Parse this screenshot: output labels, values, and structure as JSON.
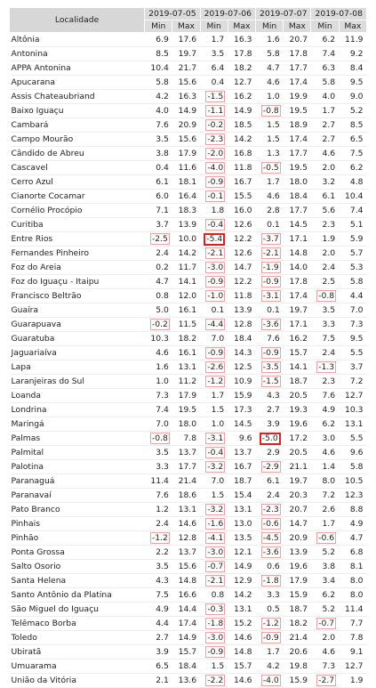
{
  "table": {
    "locality_header": "Localidade",
    "dates": [
      "2019-07-05",
      "2019-07-06",
      "2019-07-07",
      "2019-07-08"
    ],
    "sub_headers": [
      "Min",
      "Max"
    ],
    "rows": [
      {
        "name": "Altônia",
        "values": [
          "6.9",
          "17.6",
          "1.7",
          "16.3",
          "1.6",
          "20.7",
          "6.2",
          "11.9"
        ]
      },
      {
        "name": "Antonina",
        "values": [
          "8.5",
          "19.7",
          "3.5",
          "17.8",
          "5.8",
          "17.8",
          "7.4",
          "9.2"
        ]
      },
      {
        "name": "APPA Antonina",
        "values": [
          "10.4",
          "21.7",
          "6.4",
          "18.2",
          "4.7",
          "17.7",
          "6.3",
          "8.4"
        ]
      },
      {
        "name": "Apucarana",
        "values": [
          "5.8",
          "15.6",
          "0.4",
          "12.7",
          "4.6",
          "17.4",
          "5.8",
          "9.5"
        ]
      },
      {
        "name": "Assis Chateaubriand",
        "values": [
          "4.2",
          "16.3",
          "-1.5",
          "16.2",
          "1.0",
          "19.9",
          "4.0",
          "9.0"
        ]
      },
      {
        "name": "Baixo Iguaçu",
        "values": [
          "4.0",
          "14.9",
          "-1.1",
          "14.9",
          "-0.8",
          "19.5",
          "1.7",
          "5.2"
        ]
      },
      {
        "name": "Cambará",
        "values": [
          "7.6",
          "20.9",
          "-0.2",
          "18.5",
          "1.5",
          "18.9",
          "2.7",
          "8.5"
        ]
      },
      {
        "name": "Campo Mourão",
        "values": [
          "3.5",
          "15.6",
          "-2.3",
          "14.2",
          "1.5",
          "17.4",
          "2.7",
          "6.5"
        ]
      },
      {
        "name": "Cândido de Abreu",
        "values": [
          "3.8",
          "17.9",
          "-2.0",
          "16.8",
          "1.3",
          "17.7",
          "4.6",
          "7.5"
        ]
      },
      {
        "name": "Cascavel",
        "values": [
          "0.4",
          "11.6",
          "-4.0",
          "11.8",
          "-0.5",
          "19.5",
          "2.0",
          "6.2"
        ]
      },
      {
        "name": "Cerro Azul",
        "values": [
          "6.1",
          "18.1",
          "-0.9",
          "16.7",
          "1.7",
          "18.0",
          "3.2",
          "4.8"
        ]
      },
      {
        "name": "Cianorte Cocamar",
        "values": [
          "6.0",
          "16.4",
          "-0.1",
          "15.5",
          "4.6",
          "18.4",
          "6.1",
          "10.4"
        ]
      },
      {
        "name": "Cornélio Procópio",
        "values": [
          "7.1",
          "18.3",
          "1.8",
          "16.0",
          "2.8",
          "17.7",
          "5.6",
          "7.4"
        ]
      },
      {
        "name": "Curitiba",
        "values": [
          "3.7",
          "13.9",
          "-0.4",
          "12.6",
          "0.1",
          "14.5",
          "2.3",
          "5.1"
        ]
      },
      {
        "name": "Entre Rios",
        "values": [
          "-2.5",
          "10.0",
          "-5.4",
          "12.2",
          "-3.7",
          "17.1",
          "1.9",
          "5.9"
        ]
      },
      {
        "name": "Fernandes Pinheiro",
        "values": [
          "2.4",
          "14.2",
          "-2.1",
          "12.6",
          "-2.1",
          "14.8",
          "2.0",
          "5.7"
        ]
      },
      {
        "name": "Foz do Areia",
        "values": [
          "0.2",
          "11.7",
          "-3.0",
          "14.7",
          "-1.9",
          "14.0",
          "2.4",
          "5.3"
        ]
      },
      {
        "name": "Foz do Iguaçu - Itaipu",
        "values": [
          "4.7",
          "14.1",
          "-0.9",
          "12.2",
          "-0.9",
          "17.8",
          "2.5",
          "5.8"
        ]
      },
      {
        "name": "Francisco Beltrão",
        "values": [
          "0.8",
          "12.0",
          "-1.0",
          "11.8",
          "-3.1",
          "17.4",
          "-0.8",
          "4.4"
        ]
      },
      {
        "name": "Guaíra",
        "values": [
          "5.0",
          "16.1",
          "0.1",
          "13.9",
          "0.1",
          "19.7",
          "3.5",
          "7.0"
        ]
      },
      {
        "name": "Guarapuava",
        "values": [
          "-0.2",
          "11.5",
          "-4.4",
          "12.8",
          "-3.6",
          "17.1",
          "3.3",
          "7.3"
        ]
      },
      {
        "name": "Guaratuba",
        "values": [
          "10.3",
          "18.2",
          "7.0",
          "18.4",
          "7.6",
          "16.2",
          "7.5",
          "9.5"
        ]
      },
      {
        "name": "Jaguariaíva",
        "values": [
          "4.6",
          "16.1",
          "-0.9",
          "14.3",
          "-0.9",
          "15.7",
          "2.4",
          "5.5"
        ]
      },
      {
        "name": "Lapa",
        "values": [
          "1.6",
          "13.1",
          "-2.6",
          "12.5",
          "-3.5",
          "14.1",
          "-1.3",
          "3.7"
        ]
      },
      {
        "name": "Laranjeiras do Sul",
        "values": [
          "1.0",
          "11.2",
          "-1.2",
          "10.9",
          "-1.5",
          "18.7",
          "2.3",
          "7.2"
        ]
      },
      {
        "name": "Loanda",
        "values": [
          "7.3",
          "17.9",
          "1.7",
          "15.9",
          "4.3",
          "20.5",
          "7.6",
          "12.7"
        ]
      },
      {
        "name": "Londrina",
        "values": [
          "7.4",
          "19.5",
          "1.5",
          "17.3",
          "2.7",
          "19.3",
          "4.9",
          "10.3"
        ]
      },
      {
        "name": "Maringá",
        "values": [
          "7.0",
          "18.0",
          "1.0",
          "14.5",
          "3.9",
          "19.6",
          "6.2",
          "13.1"
        ]
      },
      {
        "name": "Palmas",
        "values": [
          "-0.8",
          "7.8",
          "-3.1",
          "9.6",
          "-5.0",
          "17.2",
          "3.0",
          "5.5"
        ]
      },
      {
        "name": "Palmital",
        "values": [
          "3.5",
          "13.7",
          "-0.4",
          "13.7",
          "2.9",
          "20.5",
          "4.6",
          "9.6"
        ]
      },
      {
        "name": "Palotina",
        "values": [
          "3.3",
          "17.7",
          "-3.2",
          "16.7",
          "-2.9",
          "21.1",
          "1.4",
          "5.8"
        ]
      },
      {
        "name": "Paranaguá",
        "values": [
          "11.4",
          "21.4",
          "7.0",
          "18.7",
          "6.1",
          "19.7",
          "8.0",
          "10.5"
        ]
      },
      {
        "name": "Paranavaí",
        "values": [
          "7.6",
          "18.6",
          "1.5",
          "15.4",
          "2.4",
          "20.3",
          "7.2",
          "12.3"
        ]
      },
      {
        "name": "Pato Branco",
        "values": [
          "1.2",
          "13.1",
          "-3.2",
          "13.1",
          "-2.3",
          "20.7",
          "2.6",
          "8.8"
        ]
      },
      {
        "name": "Pinhais",
        "values": [
          "2.4",
          "14.6",
          "-1.6",
          "13.0",
          "-0.6",
          "14.7",
          "1.7",
          "4.9"
        ]
      },
      {
        "name": "Pinhão",
        "values": [
          "-1.2",
          "12.8",
          "-4.1",
          "13.5",
          "-4.5",
          "20.9",
          "-0.6",
          "4.7"
        ]
      },
      {
        "name": "Ponta Grossa",
        "values": [
          "2.2",
          "13.7",
          "-3.0",
          "12.1",
          "-3.6",
          "13.9",
          "5.2",
          "6.8"
        ]
      },
      {
        "name": "Salto Osorio",
        "values": [
          "3.5",
          "15.6",
          "-0.7",
          "14.9",
          "0.6",
          "19.6",
          "3.8",
          "8.1"
        ]
      },
      {
        "name": "Santa Helena",
        "values": [
          "4.3",
          "14.8",
          "-2.1",
          "12.9",
          "-1.8",
          "17.9",
          "3.4",
          "8.0"
        ]
      },
      {
        "name": "Santo Antônio da Platina",
        "values": [
          "7.5",
          "16.6",
          "0.8",
          "14.2",
          "3.3",
          "15.9",
          "6.2",
          "8.0"
        ]
      },
      {
        "name": "São Miguel do Iguaçu",
        "values": [
          "4.9",
          "14.4",
          "-0.3",
          "13.1",
          "0.5",
          "18.7",
          "5.2",
          "11.4"
        ]
      },
      {
        "name": "Telêmaco Borba",
        "values": [
          "4.4",
          "17.4",
          "-1.8",
          "15.2",
          "-1.2",
          "18.2",
          "-0.7",
          "7.7"
        ]
      },
      {
        "name": "Toledo",
        "values": [
          "2.7",
          "14.9",
          "-3.0",
          "14.6",
          "-0.9",
          "21.4",
          "2.0",
          "7.8"
        ]
      },
      {
        "name": "Ubiratã",
        "values": [
          "3.9",
          "15.7",
          "-0.9",
          "14.8",
          "1.7",
          "20.6",
          "4.6",
          "9.1"
        ]
      },
      {
        "name": "Umuarama",
        "values": [
          "6.5",
          "18.4",
          "1.5",
          "15.7",
          "4.2",
          "19.8",
          "7.3",
          "12.7"
        ]
      },
      {
        "name": "União da Vitória",
        "values": [
          "2.1",
          "13.6",
          "-2.2",
          "14.6",
          "-4.0",
          "15.9",
          "-2.7",
          "1.9"
        ]
      }
    ],
    "highlight": {
      "negative_border_color": "#e9a3a3",
      "strong_border_color": "#e02020",
      "strong_cells": [
        [
          14,
          2
        ],
        [
          28,
          4
        ]
      ]
    }
  }
}
